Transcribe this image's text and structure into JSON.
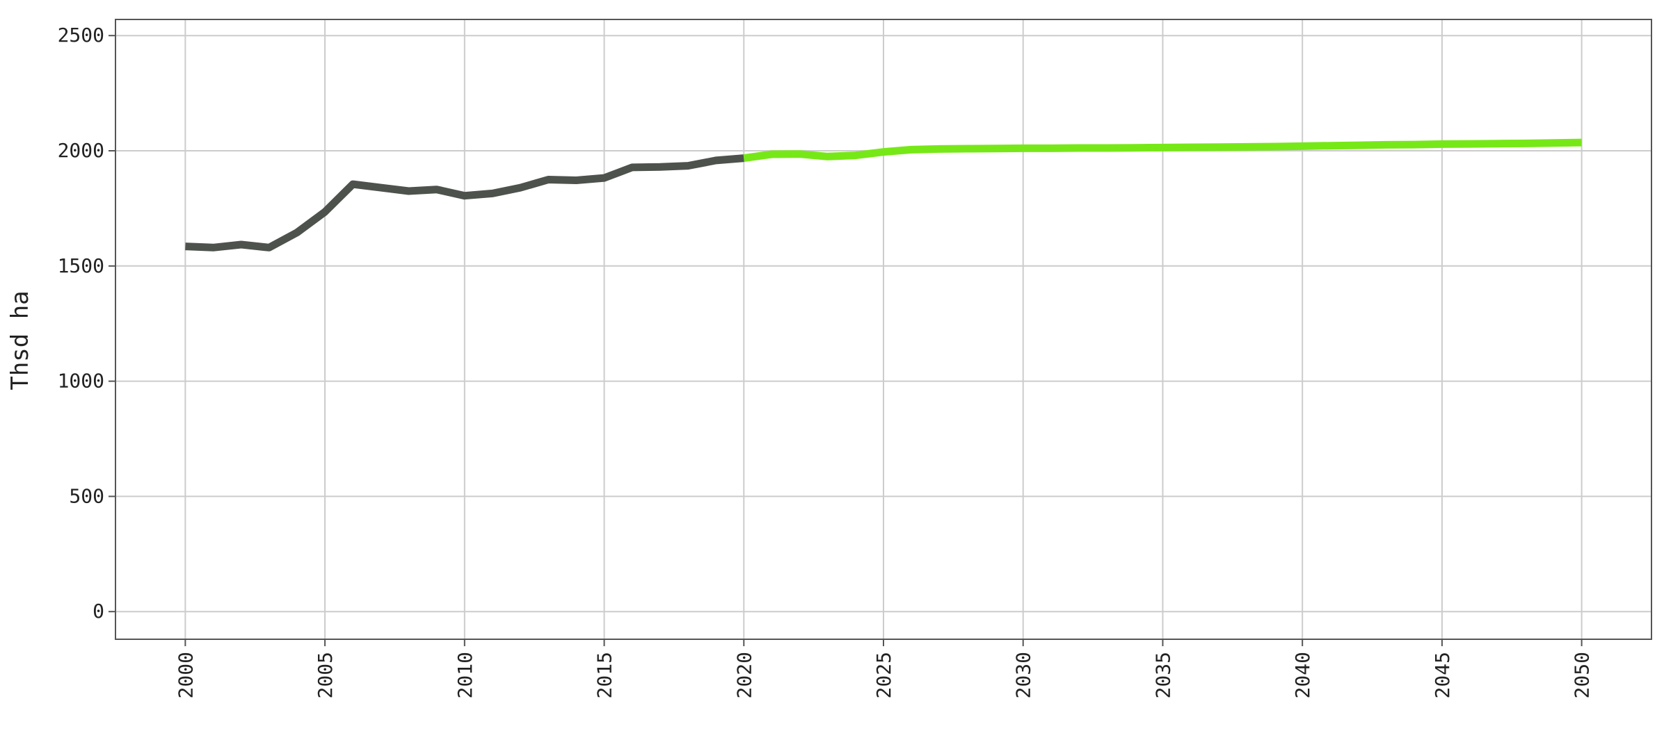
{
  "chart_data": {
    "type": "line",
    "title": "",
    "xlabel": "",
    "ylabel": "Thsd ha",
    "xlim": [
      1997.5,
      2052.5
    ],
    "ylim": [
      -120,
      2570
    ],
    "x_ticks": [
      2000,
      2005,
      2010,
      2015,
      2020,
      2025,
      2030,
      2035,
      2040,
      2045,
      2050
    ],
    "y_ticks": [
      0,
      500,
      1000,
      1500,
      2000,
      2500
    ],
    "grid": true,
    "legend": "none",
    "series": [
      {
        "color": "#4d524d",
        "x": [
          2000,
          2001,
          2002,
          2003,
          2004,
          2005,
          2006,
          2007,
          2008,
          2009,
          2010,
          2011,
          2012,
          2013,
          2014,
          2015,
          2016,
          2017,
          2018,
          2019,
          2020
        ],
        "y": [
          1585,
          1580,
          1593,
          1580,
          1645,
          1735,
          1855,
          1840,
          1825,
          1832,
          1805,
          1815,
          1840,
          1875,
          1872,
          1882,
          1928,
          1930,
          1935,
          1958,
          1968
        ]
      },
      {
        "color": "#77e817",
        "x": [
          2020,
          2021,
          2022,
          2023,
          2024,
          2025,
          2026,
          2027,
          2028,
          2029,
          2030,
          2031,
          2032,
          2033,
          2034,
          2035,
          2036,
          2037,
          2038,
          2039,
          2040,
          2041,
          2042,
          2043,
          2044,
          2045,
          2046,
          2047,
          2048,
          2049,
          2050
        ],
        "y": [
          1968,
          1985,
          1986,
          1975,
          1980,
          1995,
          2005,
          2008,
          2009,
          2010,
          2011,
          2011,
          2012,
          2012,
          2013,
          2014,
          2015,
          2016,
          2017,
          2018,
          2020,
          2022,
          2024,
          2026,
          2027,
          2029,
          2030,
          2031,
          2032,
          2034,
          2036
        ]
      }
    ]
  }
}
